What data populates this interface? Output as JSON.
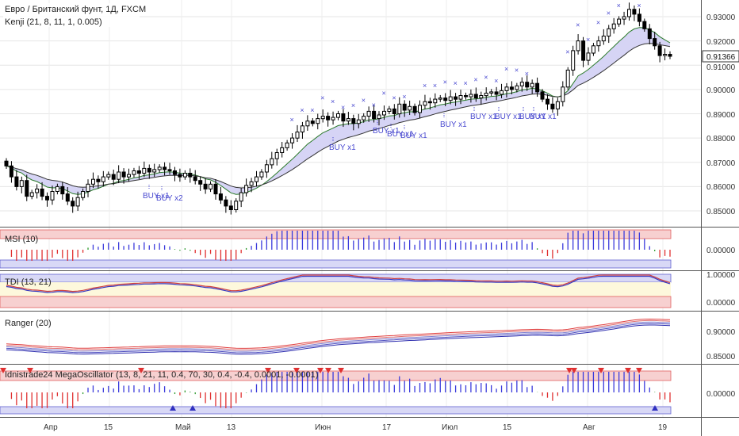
{
  "symbol_title": "Евро / Британский фунт, 1Д, FXCM",
  "indicator_kenji": "Kenji (21, 8, 11, 1, 0.005)",
  "panes": {
    "msi": "MSI (10)",
    "tdi": "TDI (13, 21)",
    "ranger": "Ranger (20)",
    "mega": "Idnistrade24 MegaOscillator (13, 8, 21, 11, 0.4, 70, 30, 0.4, -0.4, 0.0001, -0.0001)"
  },
  "price_axis": {
    "ticks": [
      "0.93000",
      "0.92000",
      "0.91000",
      "0.90000",
      "0.89000",
      "0.88000",
      "0.87000",
      "0.86000",
      "0.85000"
    ],
    "last_price": "0.91366"
  },
  "msi_axis": [
    "0.00000"
  ],
  "tdi_axis": [
    "1.00000",
    "0.00000"
  ],
  "ranger_axis": [
    "0.90000",
    "0.85000"
  ],
  "mega_axis": [
    "0.00000"
  ],
  "x_axis": {
    "labels": [
      "Апр",
      "15",
      "Май",
      "13",
      "Июн",
      "17",
      "Июл",
      "15",
      "Авг",
      "19"
    ]
  },
  "buy_signals": [
    "BUY x1",
    "BUY x2",
    "BUY x1",
    "BUY x1",
    "BUY x1",
    "BUY x1",
    "BUY x1",
    "BUY x1",
    "BUY x1",
    "BUY x1",
    "BUY x1"
  ],
  "colors": {
    "up": "#ffffff",
    "down": "#000000",
    "band_fill": "#d6d4f5",
    "band_line": "#333333",
    "cross": "#4a4ad0",
    "bar_blue": "#3b3bdc",
    "bar_red": "#e03030",
    "bar_green": "#2e9a2e",
    "zone_red": "#f7d0d0",
    "zone_blue": "#d8d8f6",
    "zone_yellow": "#fdf8dc"
  },
  "chart_data": {
    "type": "candlestick",
    "title": "Евро / Британский фунт, 1Д, FXCM",
    "ylim": [
      0.845,
      0.936
    ],
    "grid": true,
    "close": [
      0.8685,
      0.864,
      0.86,
      0.8625,
      0.856,
      0.8575,
      0.859,
      0.856,
      0.8545,
      0.858,
      0.86,
      0.857,
      0.854,
      0.852,
      0.8555,
      0.858,
      0.861,
      0.863,
      0.862,
      0.864,
      0.865,
      0.863,
      0.866,
      0.864,
      0.865,
      0.8665,
      0.8655,
      0.8675,
      0.866,
      0.867,
      0.868,
      0.867,
      0.8665,
      0.865,
      0.864,
      0.8655,
      0.864,
      0.8625,
      0.861,
      0.859,
      0.861,
      0.857,
      0.8545,
      0.852,
      0.8505,
      0.854,
      0.8575,
      0.8605,
      0.862,
      0.864,
      0.866,
      0.869,
      0.8715,
      0.874,
      0.876,
      0.878,
      0.88,
      0.8825,
      0.885,
      0.887,
      0.886,
      0.888,
      0.889,
      0.8875,
      0.8885,
      0.89,
      0.887,
      0.888,
      0.886,
      0.8875,
      0.889,
      0.891,
      0.888,
      0.8895,
      0.891,
      0.892,
      0.89,
      0.894,
      0.8915,
      0.893,
      0.8905,
      0.8935,
      0.895,
      0.8945,
      0.896,
      0.8965,
      0.8955,
      0.897,
      0.896,
      0.8975,
      0.897,
      0.898,
      0.8965,
      0.8975,
      0.8985,
      0.899,
      0.898,
      0.8995,
      0.901,
      0.9,
      0.9015,
      0.903,
      0.901,
      0.9025,
      0.899,
      0.896,
      0.894,
      0.892,
      0.895,
      0.901,
      0.908,
      0.916,
      0.92,
      0.912,
      0.915,
      0.918,
      0.92,
      0.922,
      0.925,
      0.927,
      0.929,
      0.93,
      0.933,
      0.931,
      0.928,
      0.925,
      0.921,
      0.918,
      0.914,
      0.9145,
      0.9137
    ]
  }
}
